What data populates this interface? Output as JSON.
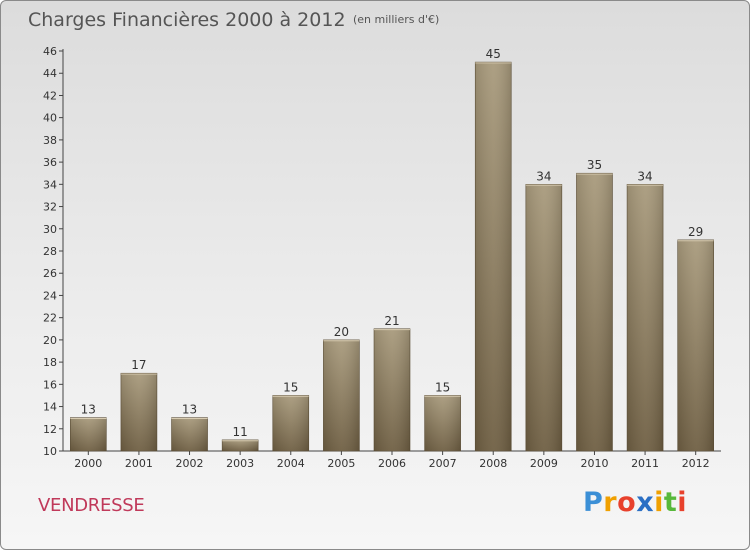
{
  "header": {
    "title": "Charges Financières 2000 à 2012",
    "subtitle": "(en milliers d'€)"
  },
  "footer": {
    "commune": "VENDRESSE",
    "brand": "Proxiti",
    "brand_letters": [
      {
        "char": "P",
        "color": "#3b8fd6"
      },
      {
        "char": "r",
        "color": "#f0a000"
      },
      {
        "char": "o",
        "color": "#e8412c"
      },
      {
        "char": "x",
        "color": "#2b6fc4"
      },
      {
        "char": "i",
        "color": "#f0a000"
      },
      {
        "char": "t",
        "color": "#57b83b"
      },
      {
        "char": "i",
        "color": "#e8412c"
      }
    ]
  },
  "chart_data": {
    "type": "bar",
    "title": "Charges Financières 2000 à 2012",
    "subtitle": "(en milliers d'€)",
    "categories": [
      "2000",
      "2001",
      "2002",
      "2003",
      "2004",
      "2005",
      "2006",
      "2007",
      "2008",
      "2009",
      "2010",
      "2011",
      "2012"
    ],
    "values": [
      13,
      17,
      13,
      11,
      15,
      20,
      21,
      15,
      45,
      34,
      35,
      34,
      29
    ],
    "ylim": [
      10,
      46
    ],
    "yticks": [
      10,
      12,
      14,
      16,
      18,
      20,
      22,
      24,
      26,
      28,
      30,
      32,
      34,
      36,
      38,
      40,
      42,
      44,
      46
    ],
    "xlabel": "",
    "ylabel": "",
    "grid": false,
    "bar_color_top": "#a89a7c",
    "bar_color_bottom": "#6e5e42"
  }
}
